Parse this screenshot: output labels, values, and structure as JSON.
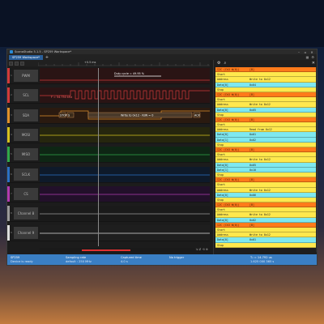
{
  "window": {
    "title": "ScanaStudio 5.1.5 - SP259 Workspace*",
    "tab_label": "SP259 Workspace*",
    "tab_add": "+"
  },
  "ruler": {
    "time_label": "+0.5 ms"
  },
  "channels": [
    {
      "num": "1",
      "name": "PWM",
      "color": "#d13a3a"
    },
    {
      "num": "2",
      "name": "SCL",
      "color": "#d13a3a"
    },
    {
      "num": "3",
      "name": "SDA",
      "color": "#e0902a"
    },
    {
      "num": "4",
      "name": "MOSI",
      "color": "#d4c020"
    },
    {
      "num": "5",
      "name": "MISO",
      "color": "#2fa84a"
    },
    {
      "num": "6",
      "name": "SCLK",
      "color": "#2a6fc4"
    },
    {
      "num": "7",
      "name": "CS",
      "color": "#b03ab0"
    },
    {
      "num": "8",
      "name": "Channel 8",
      "color": "#9a9a9a"
    },
    {
      "num": "9",
      "name": "Channel 9",
      "color": "#dddddd"
    }
  ],
  "traces": {
    "pwm_label": "Duty cycle = 49.95 %",
    "scl_label": "F = 54.750 kHz",
    "sda_start": "STOP",
    "sda_s": "S",
    "sda_frame": "Write to 0x12 - R/W = 0",
    "sda_ack": "ACK"
  },
  "decoder_rows": [
    {
      "kind": "i2c",
      "c1": "I2C (Ch3 W(0))",
      "c2": "[B]"
    },
    {
      "kind": "start",
      "c1": "Start",
      "c2": ""
    },
    {
      "kind": "addr",
      "c1": "Address",
      "c2": "Write to 0x12"
    },
    {
      "kind": "data",
      "c1": "Data[0]",
      "c2": "0x04"
    },
    {
      "kind": "stop",
      "c1": "Stop",
      "c2": ""
    },
    {
      "kind": "i2c",
      "c1": "I2C (Ch3 W(0))",
      "c2": "[B]"
    },
    {
      "kind": "start",
      "c1": "Start",
      "c2": ""
    },
    {
      "kind": "addr",
      "c1": "Address",
      "c2": "Write to 0x12"
    },
    {
      "kind": "data",
      "c1": "Data[0]",
      "c2": "0x05"
    },
    {
      "kind": "stop",
      "c1": "Stop",
      "c2": ""
    },
    {
      "kind": "i2c",
      "c1": "I2C (Ch3 W(0))",
      "c2": "[B]"
    },
    {
      "kind": "start",
      "c1": "Start",
      "c2": ""
    },
    {
      "kind": "addr",
      "c1": "Address",
      "c2": "Read from 0x12"
    },
    {
      "kind": "data",
      "c1": "Data[0]",
      "c2": "0x01"
    },
    {
      "kind": "data",
      "c1": "Data[1]",
      "c2": "0x02"
    },
    {
      "kind": "stop",
      "c1": "Stop",
      "c2": ""
    },
    {
      "kind": "i2c",
      "c1": "I2C (Ch3 W(0))",
      "c2": "[B]"
    },
    {
      "kind": "start",
      "c1": "Start",
      "c2": ""
    },
    {
      "kind": "addr",
      "c1": "Address",
      "c2": "Write to 0x12"
    },
    {
      "kind": "data",
      "c1": "Data[0]",
      "c2": "0x05"
    },
    {
      "kind": "data",
      "c1": "Data[1]",
      "c2": "0x10"
    },
    {
      "kind": "stop",
      "c1": "Stop",
      "c2": ""
    },
    {
      "kind": "i2c",
      "c1": "I2C (Ch3 W(0))",
      "c2": "[B]"
    },
    {
      "kind": "start",
      "c1": "Start",
      "c2": ""
    },
    {
      "kind": "addr",
      "c1": "Address",
      "c2": "Write to 0x12"
    },
    {
      "kind": "data",
      "c1": "Data[0]",
      "c2": "0x06"
    },
    {
      "kind": "stop",
      "c1": "Stop",
      "c2": ""
    },
    {
      "kind": "i2c",
      "c1": "I2C (Ch3 W(0))",
      "c2": "[B]"
    },
    {
      "kind": "start",
      "c1": "Start",
      "c2": ""
    },
    {
      "kind": "addr",
      "c1": "Address",
      "c2": "Write to 0x12"
    },
    {
      "kind": "data",
      "c1": "Data[0]",
      "c2": "0x02"
    },
    {
      "kind": "i2c",
      "c1": "I2C (Ch3 W(0))",
      "c2": "[B]"
    },
    {
      "kind": "start",
      "c1": "Start",
      "c2": ""
    },
    {
      "kind": "addr",
      "c1": "Address",
      "c2": "Write to 0x12"
    },
    {
      "kind": "data",
      "c1": "Data[0]",
      "c2": "0x01"
    },
    {
      "kind": "stop",
      "c1": "Stop",
      "c2": ""
    }
  ],
  "status": {
    "device": "SP259",
    "device_state": "Device is ready",
    "sampling_label": "Sampling rate",
    "sampling_value": "default : 250 MHz",
    "captured_label": "Captured time",
    "captured_value": "4.0 s",
    "trigger": "No trigger",
    "measure1": "T₂ = 14.792 us",
    "measure2": "1.625 000 365 s"
  }
}
